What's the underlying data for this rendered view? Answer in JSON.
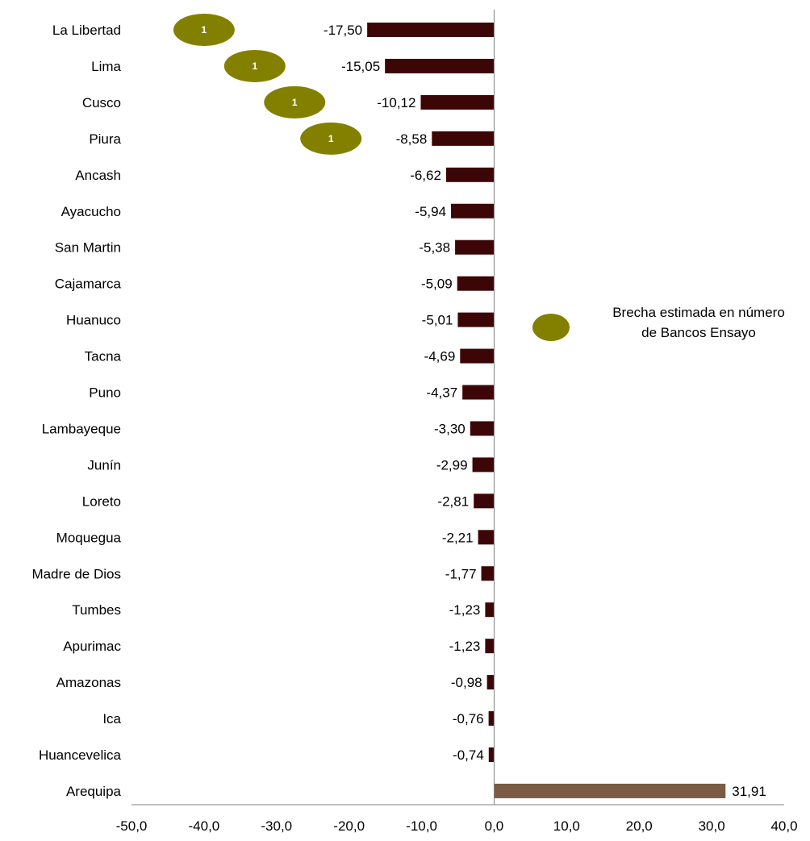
{
  "chart_data": {
    "type": "bar",
    "orientation": "horizontal",
    "title": "",
    "xlabel": "",
    "ylabel": "",
    "xlim": [
      -50,
      40
    ],
    "x_ticks": [
      "-50,0",
      "-40,0",
      "-30,0",
      "-20,0",
      "-10,0",
      "0,0",
      "10,0",
      "20,0",
      "30,0",
      "40,0"
    ],
    "x_tick_values": [
      -50,
      -40,
      -30,
      -20,
      -10,
      0,
      10,
      20,
      30,
      40
    ],
    "grid": false,
    "categories": [
      "La Libertad",
      "Lima",
      "Cusco",
      "Piura",
      "Ancash",
      "Ayacucho",
      "San Martin",
      "Cajamarca",
      "Huanuco",
      "Tacna",
      "Puno",
      "Lambayeque",
      "Junín",
      "Loreto",
      "Moquegua",
      "Madre de Dios",
      "Tumbes",
      "Apurimac",
      "Amazonas",
      "Ica",
      "Huancevelica",
      "Arequipa"
    ],
    "values": [
      -17.5,
      -15.05,
      -10.12,
      -8.58,
      -6.62,
      -5.94,
      -5.38,
      -5.09,
      -5.01,
      -4.69,
      -4.37,
      -3.3,
      -2.99,
      -2.81,
      -2.21,
      -1.77,
      -1.23,
      -1.23,
      -0.98,
      -0.76,
      -0.74,
      31.91
    ],
    "value_labels": [
      "-17,50",
      "-15,05",
      "-10,12",
      "-8,58",
      "-6,62",
      "-5,94",
      "-5,38",
      "-5,09",
      "-5,01",
      "-4,69",
      "-4,37",
      "-3,30",
      "-2,99",
      "-2,81",
      "-2,21",
      "-1,77",
      "-1,23",
      "-1,23",
      "-0,98",
      "-0,76",
      "-0,74",
      "31,91"
    ],
    "badges": [
      {
        "category": "La Libertad",
        "label": "1",
        "x": -40
      },
      {
        "category": "Lima",
        "label": "1",
        "x": -33
      },
      {
        "category": "Cusco",
        "label": "1",
        "x": -27.5
      },
      {
        "category": "Piura",
        "label": "1",
        "x": -22.5
      }
    ],
    "legend": {
      "position": "right",
      "lines": [
        "Brecha estimada en número",
        "de Bancos Ensayo"
      ]
    },
    "colors": {
      "negative_bar": "#3d0606",
      "positive_bar": "#7a5c44",
      "badge": "#838000",
      "axis": "#808080"
    }
  }
}
